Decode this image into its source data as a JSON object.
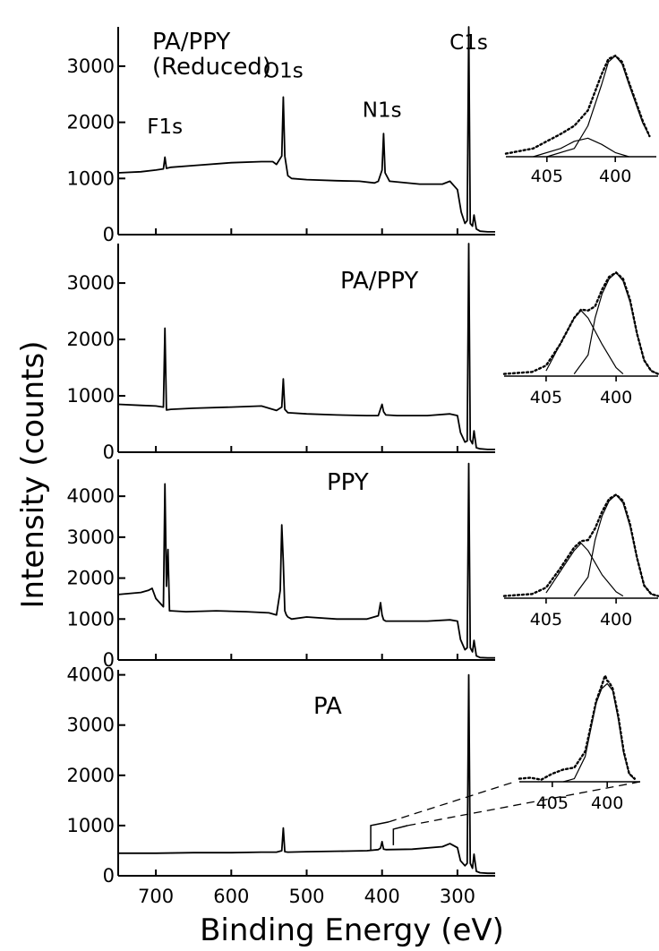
{
  "chart_data": {
    "type": "line",
    "xlabel": "Binding Energy (eV)",
    "ylabel": "Intensity (counts)",
    "x_ticks": [
      700,
      600,
      500,
      400,
      300
    ],
    "xlim": [
      750,
      250
    ],
    "panels": [
      {
        "title": "PA/PPY (Reduced)",
        "title_lines": [
          "PA/PPY",
          "(Reduced)"
        ],
        "ylim": [
          0,
          3700
        ],
        "y_ticks": [
          0,
          1000,
          2000,
          3000
        ],
        "peak_labels": [
          {
            "text": "F1s",
            "x": 688,
            "y": 1800
          },
          {
            "text": "O1s",
            "x": 531,
            "y": 2800
          },
          {
            "text": "N1s",
            "x": 400,
            "y": 2100
          },
          {
            "text": "C1s",
            "x": 285,
            "y": 3300
          }
        ],
        "series": [
          {
            "x": [
              750,
              720,
              700,
              690,
              688,
              686,
              680,
              650,
              600,
              560,
              545,
              540,
              533,
              531,
              529,
              525,
              520,
              500,
              460,
              430,
              410,
              405,
              400,
              398,
              396,
              390,
              350,
              320,
              310,
              300,
              295,
              290,
              287,
              285,
              283,
              280,
              278,
              275,
              270,
              260,
              250
            ],
            "y": [
              1100,
              1120,
              1150,
              1170,
              1380,
              1180,
              1200,
              1230,
              1280,
              1300,
              1300,
              1250,
              1400,
              2450,
              1400,
              1050,
              1000,
              980,
              960,
              950,
              920,
              950,
              1150,
              1800,
              1100,
              950,
              900,
              900,
              950,
              800,
              400,
              200,
              250,
              3700,
              200,
              150,
              350,
              100,
              60,
              50,
              50
            ]
          }
        ],
        "inset": {
          "x_ticks": [
            405,
            400
          ],
          "xlim": [
            408,
            397
          ],
          "ylim": [
            0,
            100
          ],
          "envelope": {
            "x": [
              408,
              406,
              404,
              403,
              402,
              401,
              400.5,
              400,
              399.5,
              399,
              398,
              397.5
            ],
            "y": [
              3,
              8,
              22,
              30,
              45,
              80,
              95,
              98,
              92,
              72,
              35,
              20
            ]
          },
          "components": [
            {
              "x": [
                406,
                404,
                403,
                402,
                401,
                400,
                399
              ],
              "y": [
                0,
                8,
                15,
                18,
                12,
                4,
                0
              ]
            },
            {
              "x": [
                405,
                403,
                402,
                401,
                400.5,
                400,
                399.5,
                399,
                398,
                397.5
              ],
              "y": [
                0,
                8,
                30,
                70,
                92,
                98,
                90,
                70,
                33,
                20
              ]
            }
          ]
        }
      },
      {
        "title": "PA/PPY",
        "ylim": [
          0,
          3700
        ],
        "y_ticks": [
          0,
          1000,
          2000,
          3000
        ],
        "peak_labels": [],
        "series": [
          {
            "x": [
              750,
              720,
              700,
              690,
              688,
              686,
              680,
              650,
              600,
              560,
              540,
              533,
              531,
              529,
              525,
              500,
              460,
              420,
              405,
              400,
              398,
              395,
              380,
              340,
              310,
              300,
              296,
              290,
              287,
              285,
              283,
              280,
              278,
              275,
              270,
              260,
              250
            ],
            "y": [
              850,
              830,
              820,
              800,
              2200,
              750,
              760,
              780,
              800,
              820,
              740,
              800,
              1300,
              760,
              700,
              680,
              660,
              650,
              650,
              850,
              720,
              660,
              650,
              650,
              680,
              650,
              350,
              180,
              200,
              3700,
              220,
              150,
              380,
              80,
              60,
              50,
              50
            ]
          }
        ],
        "inset": {
          "x_ticks": [
            405,
            400
          ],
          "xlim": [
            408,
            397
          ],
          "ylim": [
            0,
            100
          ],
          "envelope": {
            "x": [
              408,
              406,
              405,
              404,
              403,
              402.5,
              402,
              401.5,
              401,
              400.5,
              400,
              399.5,
              399,
              398.5,
              398,
              397.5,
              397
            ],
            "y": [
              2,
              4,
              10,
              30,
              55,
              63,
              62,
              66,
              82,
              94,
              98,
              92,
              72,
              40,
              15,
              5,
              2
            ]
          },
          "components": [
            {
              "x": [
                405,
                404,
                403,
                402.5,
                402,
                401,
                400,
                399.5
              ],
              "y": [
                5,
                30,
                55,
                62,
                55,
                30,
                8,
                2
              ]
            },
            {
              "x": [
                403,
                402,
                401.5,
                401,
                400.5,
                400,
                399.5,
                399,
                398.5,
                398,
                397.5,
                397
              ],
              "y": [
                2,
                20,
                55,
                78,
                92,
                98,
                90,
                70,
                40,
                15,
                5,
                2
              ]
            }
          ]
        }
      },
      {
        "title": "PPY",
        "ylim": [
          0,
          4900
        ],
        "y_ticks": [
          0,
          1000,
          2000,
          3000,
          4000
        ],
        "peak_labels": [],
        "series": [
          {
            "x": [
              750,
              720,
              710,
              705,
              700,
              690,
              688,
              686,
              684,
              682,
              680,
              660,
              620,
              580,
              550,
              540,
              535,
              533,
              531,
              529,
              527,
              525,
              520,
              500,
              460,
              420,
              405,
              402,
              400,
              398,
              395,
              380,
              340,
              310,
              300,
              296,
              290,
              287,
              285,
              283,
              280,
              278,
              275,
              270,
              260,
              250
            ],
            "y": [
              1600,
              1650,
              1700,
              1750,
              1500,
              1300,
              4300,
              1800,
              2700,
              1200,
              1200,
              1180,
              1200,
              1180,
              1150,
              1100,
              1700,
              3300,
              2400,
              1200,
              1100,
              1050,
              1000,
              1050,
              1000,
              1000,
              1080,
              1400,
              1100,
              980,
              950,
              950,
              950,
              980,
              950,
              500,
              250,
              300,
              4800,
              300,
              200,
              480,
              100,
              60,
              50,
              50
            ]
          }
        ],
        "inset": {
          "x_ticks": [
            405,
            400
          ],
          "xlim": [
            408,
            397
          ],
          "ylim": [
            0,
            100
          ],
          "envelope": {
            "x": [
              408,
              406,
              405,
              404,
              403,
              402.5,
              402,
              401.5,
              401,
              400.5,
              400,
              399.5,
              399,
              398.5,
              398,
              397.5,
              397
            ],
            "y": [
              2,
              4,
              10,
              28,
              48,
              54,
              55,
              66,
              82,
              94,
              98,
              92,
              70,
              38,
              12,
              4,
              2
            ]
          },
          "components": [
            {
              "x": [
                405,
                404,
                403,
                402.5,
                402,
                401,
                400,
                399.5
              ],
              "y": [
                5,
                25,
                45,
                52,
                45,
                22,
                6,
                2
              ]
            },
            {
              "x": [
                403,
                402,
                401.5,
                401,
                400.5,
                400,
                399.5,
                399,
                398.5,
                398,
                397.5,
                397
              ],
              "y": [
                2,
                20,
                55,
                78,
                92,
                98,
                90,
                68,
                38,
                12,
                4,
                2
              ]
            }
          ]
        }
      },
      {
        "title": "PA",
        "ylim": [
          0,
          4100
        ],
        "y_ticks": [
          0,
          1000,
          2000,
          3000,
          4000
        ],
        "peak_labels": [],
        "series": [
          {
            "x": [
              750,
              700,
              650,
              600,
              560,
              540,
              533,
              531,
              529,
              525,
              500,
              450,
              420,
              405,
              402,
              400,
              398,
              395,
              360,
              320,
              310,
              300,
              296,
              290,
              287,
              285,
              283,
              280,
              278,
              275,
              270,
              260,
              250
            ],
            "y": [
              450,
              450,
              460,
              460,
              470,
              470,
              500,
              950,
              480,
              470,
              480,
              490,
              500,
              520,
              550,
              680,
              530,
              520,
              530,
              580,
              640,
              560,
              300,
              200,
              250,
              4000,
              250,
              150,
              430,
              90,
              60,
              50,
              50
            ]
          }
        ],
        "inset": {
          "x_ticks": [
            405,
            400
          ],
          "xlim": [
            408,
            397
          ],
          "ylim": [
            0,
            100
          ],
          "envelope": {
            "x": [
              408,
              407,
              406,
              405,
              404,
              403,
              402,
              401.5,
              401,
              400.5,
              400.2,
              400,
              399.8,
              399.5,
              399,
              398.5,
              398,
              397.5
            ],
            "y": [
              3,
              4,
              2,
              8,
              12,
              14,
              30,
              55,
              80,
              95,
              105,
              100,
              98,
              92,
              65,
              30,
              8,
              3
            ]
          },
          "components": [
            {
              "x": [
                404,
                403,
                402,
                401.5,
                401,
                400.5,
                400,
                399.5,
                399,
                398.5,
                398,
                397.5
              ],
              "y": [
                0,
                3,
                25,
                52,
                78,
                92,
                97,
                90,
                62,
                28,
                8,
                2
              ]
            }
          ]
        },
        "zoom_marker": {
          "x_from": 415,
          "x_to": 385,
          "y": 1000
        }
      }
    ]
  }
}
